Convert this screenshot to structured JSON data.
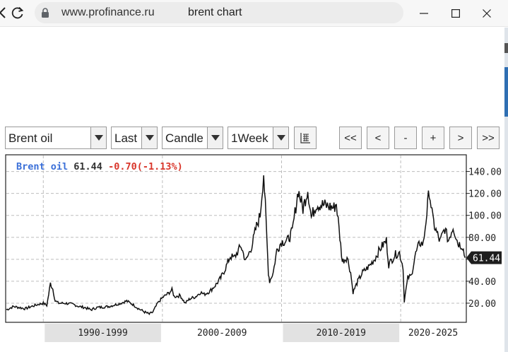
{
  "browser": {
    "url": "www.profinance.ru",
    "search_query": "brent chart"
  },
  "toolbar": {
    "instrument": "Brent oil",
    "price_type": "Last",
    "chart_style": "Candle",
    "period": "1Week",
    "nav": [
      "<<",
      "<",
      "-",
      "+",
      ">",
      ">>"
    ]
  },
  "quote": {
    "name": "Brent oil",
    "last": "61.44",
    "change": "-0.70(-1.13%)",
    "current_tag": "61.44"
  },
  "chart_data": {
    "type": "line",
    "title": "",
    "series": [
      {
        "name": "Brent oil",
        "x": [
          1986.9,
          1987.5,
          1988.0,
          1988.5,
          1989.0,
          1989.6,
          1990.0,
          1990.3,
          1990.6,
          1990.8,
          1991.0,
          1991.3,
          1991.8,
          1992.5,
          1993.0,
          1993.5,
          1994.0,
          1994.5,
          1995.5,
          1996.5,
          1997.0,
          1997.5,
          1998.0,
          1998.5,
          1998.9,
          1999.2,
          1999.6,
          2000.0,
          2000.5,
          2000.8,
          2001.0,
          2001.5,
          2001.9,
          2002.3,
          2002.8,
          2003.2,
          2003.5,
          2004.0,
          2004.5,
          2004.9,
          2005.3,
          2005.7,
          2006.0,
          2006.6,
          2007.0,
          2007.5,
          2007.9,
          2008.2,
          2008.5,
          2008.9,
          2009.0,
          2009.3,
          2009.6,
          2010.0,
          2010.5,
          2010.9,
          2011.2,
          2011.4,
          2011.8,
          2012.2,
          2012.5,
          2012.9,
          2013.3,
          2013.7,
          2014.0,
          2014.4,
          2014.6,
          2014.9,
          2015.1,
          2015.5,
          2015.8,
          2016.0,
          2016.4,
          2016.8,
          2017.3,
          2017.8,
          2018.3,
          2018.8,
          2019.0,
          2019.5,
          2019.9,
          2020.2,
          2020.3,
          2020.6,
          2020.9,
          2021.2,
          2021.6,
          2021.9,
          2022.2,
          2022.4,
          2022.7,
          2022.9,
          2023.3,
          2023.7,
          2024.0,
          2024.4,
          2024.8,
          2025.2,
          2025.4
        ],
        "values": [
          14,
          17,
          16,
          15,
          17,
          19,
          20,
          18,
          38,
          33,
          22,
          20,
          20,
          19,
          17,
          16,
          14,
          16,
          17,
          20,
          22,
          19,
          15,
          12,
          10,
          12,
          20,
          25,
          29,
          32,
          26,
          27,
          20,
          24,
          26,
          30,
          28,
          31,
          37,
          43,
          52,
          63,
          61,
          72,
          58,
          72,
          90,
          100,
          139,
          48,
          40,
          48,
          68,
          76,
          77,
          85,
          108,
          123,
          106,
          124,
          98,
          110,
          110,
          109,
          108,
          107,
          111,
          80,
          58,
          62,
          48,
          30,
          40,
          48,
          53,
          60,
          70,
          77,
          55,
          64,
          66,
          53,
          22,
          43,
          45,
          63,
          75,
          74,
          103,
          123,
          96,
          88,
          76,
          88,
          77,
          90,
          75,
          72,
          61.44
        ]
      }
    ],
    "y_ticks": [
      "20.00",
      "40.00",
      "60.00",
      "80.00",
      "100.00",
      "120.00",
      "140.00"
    ],
    "ylim": [
      0,
      155
    ],
    "x_periods": [
      "1990-1999",
      "2000-2009",
      "2010-2019",
      "2020-2025"
    ],
    "grid": true
  }
}
